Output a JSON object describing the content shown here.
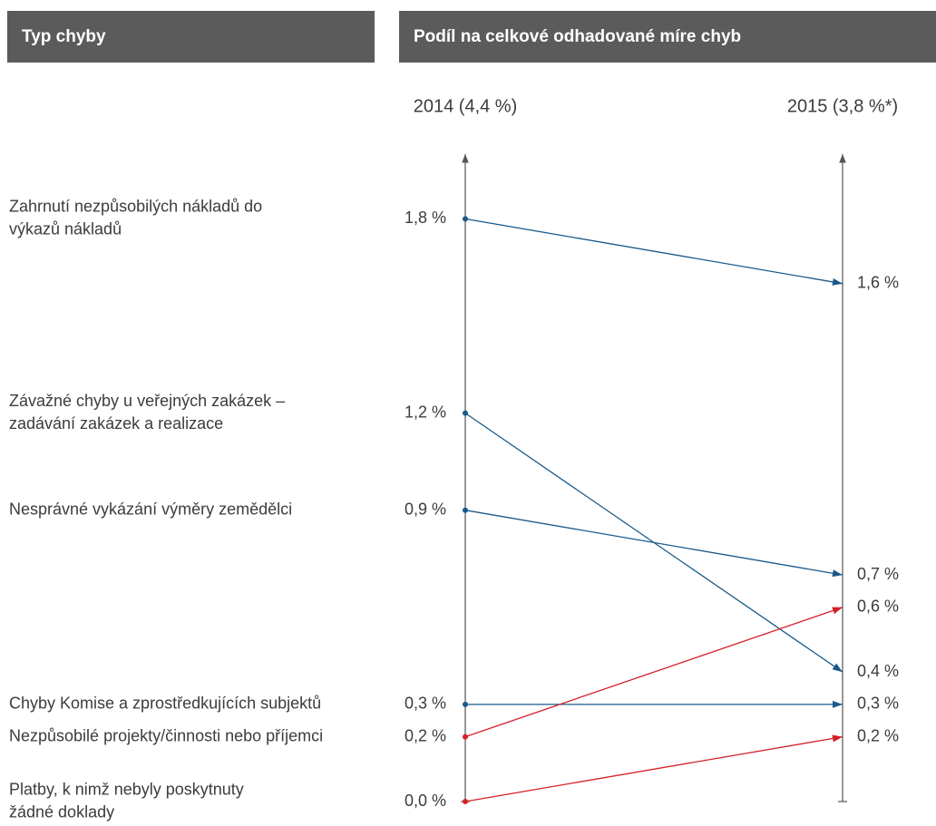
{
  "chart_data": {
    "type": "slope",
    "headers": [
      "Typ chyby",
      "Podíl na celkové odhadované míre chyb"
    ],
    "categories": [
      [
        "Zahrnutí nezpůsobilých nákladů do",
        "výkazů nákladů"
      ],
      [
        "Závažné chyby u veřejných zakázek –",
        "zadávání zakázek a realizace"
      ],
      [
        "Nesprávné vykázání výměry zemědělci"
      ],
      [
        "Chyby Komise a zprostředkujících subjektů"
      ],
      [
        "Nezpůsobilé projekty/činnosti nebo příjemci"
      ],
      [
        "Platby, k nimž nebyly poskytnuty",
        "žádné doklady"
      ]
    ],
    "series": [
      {
        "name": "2014 (4,4 %)",
        "values": [
          1.8,
          1.2,
          0.9,
          0.3,
          0.2,
          0.0
        ],
        "value_labels": [
          "1,8 %",
          "1,2 %",
          "0,9 %",
          "0,3 %",
          "0,2 %",
          "0,0 %"
        ]
      },
      {
        "name": "2015 (3,8 %*)",
        "values": [
          1.6,
          0.4,
          0.7,
          0.3,
          0.6,
          0.2
        ],
        "value_labels": [
          "1,6 %",
          "0,4 %",
          "0,7 %",
          "0,3 %",
          "0,6 %",
          "0,2 %"
        ]
      }
    ],
    "line_colors": [
      "#1a5a8a",
      "#1a5a8a",
      "#1a5a8a",
      "#1a5a8a",
      "#d42027",
      "#d42027"
    ],
    "ylim": [
      0,
      2
    ]
  }
}
